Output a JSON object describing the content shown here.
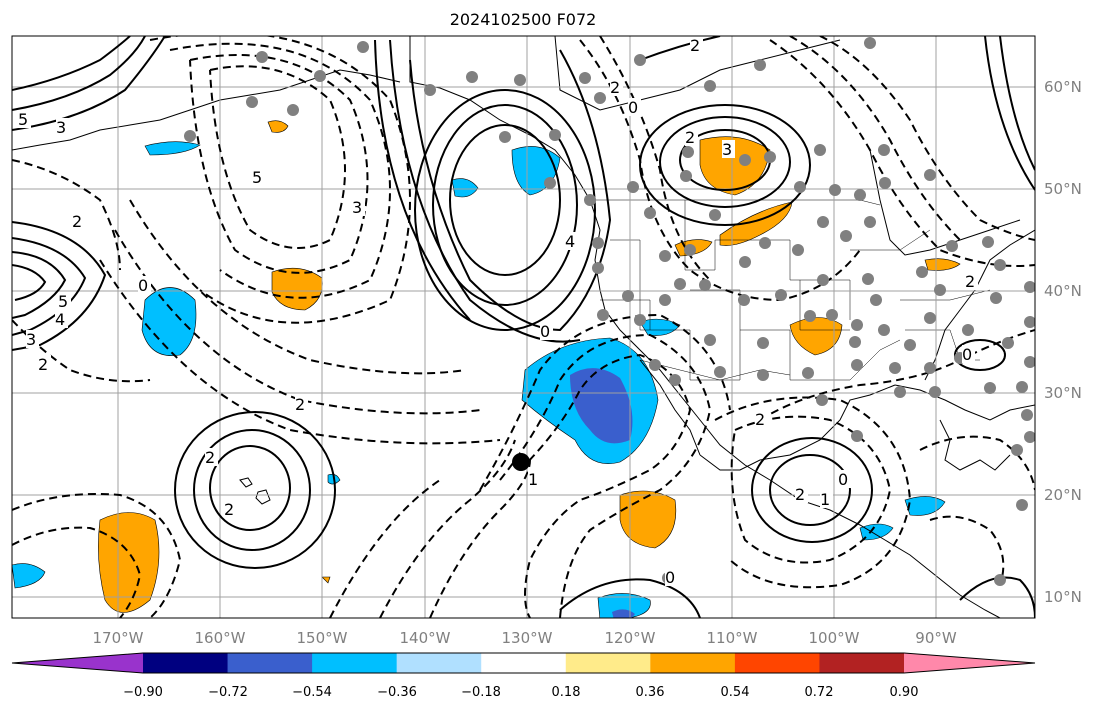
{
  "title": "2024102500 F072",
  "lon_labels": [
    "170°W",
    "160°W",
    "150°W",
    "140°W",
    "130°W",
    "120°W",
    "110°W",
    "100°W",
    "90°W"
  ],
  "lat_labels": [
    "60°N",
    "50°N",
    "40°N",
    "30°N",
    "20°N",
    "10°N"
  ],
  "colorbar": {
    "tick_labels": [
      "−0.90",
      "−0.72",
      "−0.54",
      "−0.36",
      "−0.18",
      "0.18",
      "0.36",
      "0.54",
      "0.72",
      "0.90"
    ],
    "colors": [
      "#9933cc",
      "#000080",
      "#3a5fcd",
      "#00bfff",
      "#b0e0ff",
      "#ffffff",
      "#ffeb8a",
      "#ffa500",
      "#ff4500",
      "#b22222",
      "#ff88aa"
    ]
  },
  "contour_labels": [
    "5",
    "3",
    "2",
    "0",
    "2",
    "5",
    "4",
    "3",
    "2",
    "2",
    "5",
    "3",
    "2",
    "0",
    "2",
    "3",
    "4",
    "2",
    "2",
    "2",
    "1",
    "0",
    "0",
    "2",
    "1",
    "0",
    "2",
    "0"
  ],
  "colors": {
    "positive_fill": "#ffa500",
    "negative_fill_light": "#00bfff",
    "negative_fill_dark": "#3a5fcd",
    "station_dot": "#808080",
    "marker": "#000000",
    "grid": "#a0a0a0"
  }
}
